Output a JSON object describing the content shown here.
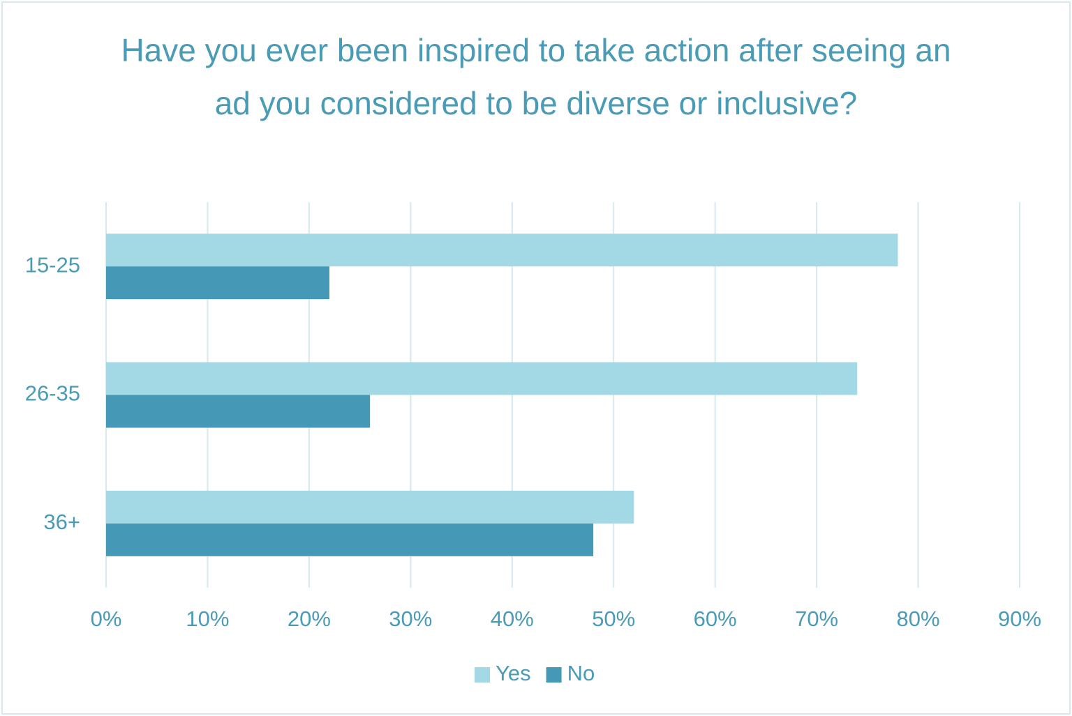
{
  "chart_data": {
    "type": "bar",
    "orientation": "horizontal",
    "title": "Have you ever been inspired to take action after seeing an ad you considered to be diverse or inclusive?",
    "categories": [
      "15-25",
      "26-35",
      "36+"
    ],
    "series": [
      {
        "name": "Yes",
        "color": "#a3d8e5",
        "values": [
          78,
          74,
          52
        ]
      },
      {
        "name": "No",
        "color": "#4598b6",
        "values": [
          22,
          26,
          48
        ]
      }
    ],
    "xlim": [
      0,
      90
    ],
    "xticks": [
      {
        "value": 0,
        "label": "0%"
      },
      {
        "value": 10,
        "label": "10%"
      },
      {
        "value": 20,
        "label": "20%"
      },
      {
        "value": 30,
        "label": "30%"
      },
      {
        "value": 40,
        "label": "40%"
      },
      {
        "value": 50,
        "label": "50%"
      },
      {
        "value": 60,
        "label": "60%"
      },
      {
        "value": 70,
        "label": "70%"
      },
      {
        "value": 80,
        "label": "80%"
      },
      {
        "value": 90,
        "label": "90%"
      }
    ],
    "grid": true,
    "legend": "bottom"
  }
}
